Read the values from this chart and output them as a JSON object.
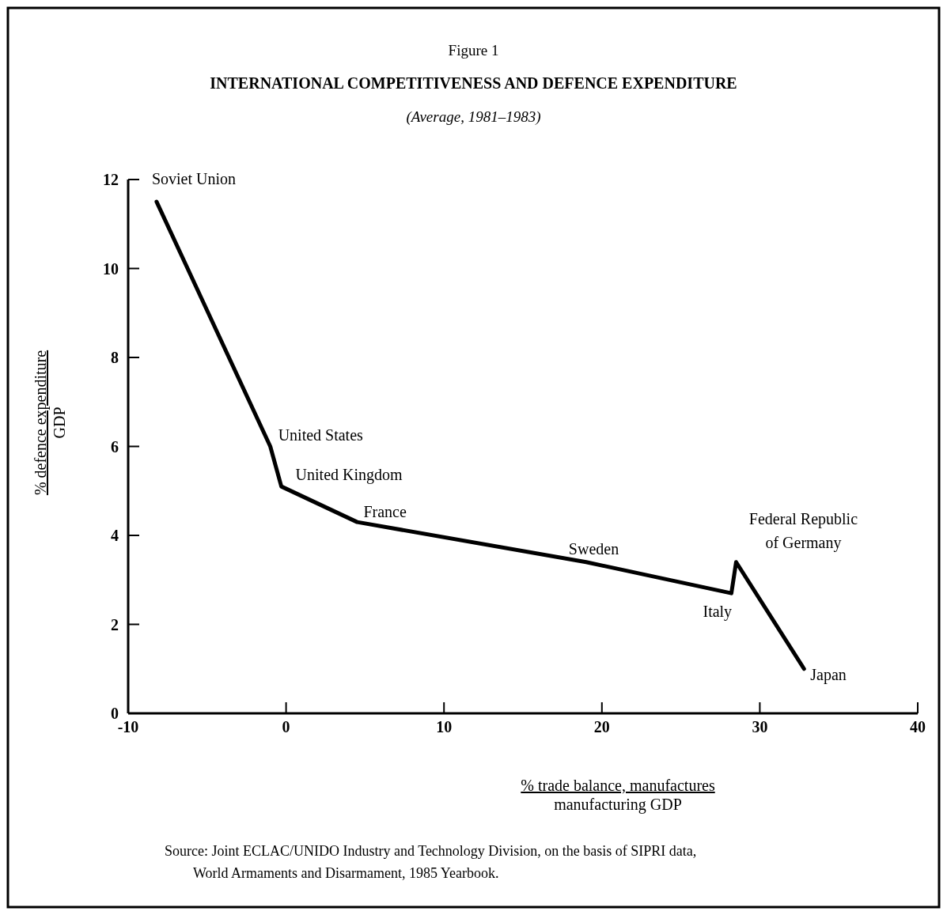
{
  "chart_data": {
    "type": "line",
    "title": "INTERNATIONAL COMPETITIVENESS AND DEFENCE EXPENDITURE",
    "subtitle": "(Average, 1981–1983)",
    "xlabel": "% trade balance, manufactures\nmanufacturing GDP",
    "ylabel": "% defence expenditure\nGDP",
    "x": [
      -8.2,
      -1,
      -0.3,
      4.5,
      19,
      28.2,
      28.5,
      32.8
    ],
    "series": [
      {
        "color": "#000000",
        "values": [
          11.5,
          6.0,
          5.1,
          4.3,
          3.4,
          2.7,
          3.4,
          1.0
        ]
      }
    ],
    "xlim": [
      -10,
      40
    ],
    "xticks": [
      -10,
      0,
      10,
      20,
      30,
      40
    ],
    "ylim": [
      0,
      12
    ],
    "yticks": [
      0,
      2,
      4,
      6,
      8,
      10,
      12
    ],
    "marker": "none",
    "line_style": "solid",
    "grid": false,
    "annotations": [
      "Figure 1",
      {
        "text": "Soviet Union",
        "x": -8.2,
        "y": 11.5
      },
      {
        "text": "United States",
        "x": -1,
        "y": 6.0
      },
      {
        "text": "United Kingdom",
        "x": -0.3,
        "y": 5.1
      },
      {
        "text": "France",
        "x": 4.5,
        "y": 4.3
      },
      {
        "text": "Sweden",
        "x": 19,
        "y": 3.4
      },
      {
        "text": "Italy",
        "x": 28.2,
        "y": 2.7
      },
      {
        "text": "Federal Republic\nof Germany",
        "x": 28.5,
        "y": 3.4
      },
      {
        "text": "Japan",
        "x": 32.8,
        "y": 1.0
      },
      "Source: Joint ECLAC/UNIDO Industry and Technology Division, on the basis of SIPRI data, World Armaments and Disarmament, 1985 Yearbook."
    ]
  }
}
